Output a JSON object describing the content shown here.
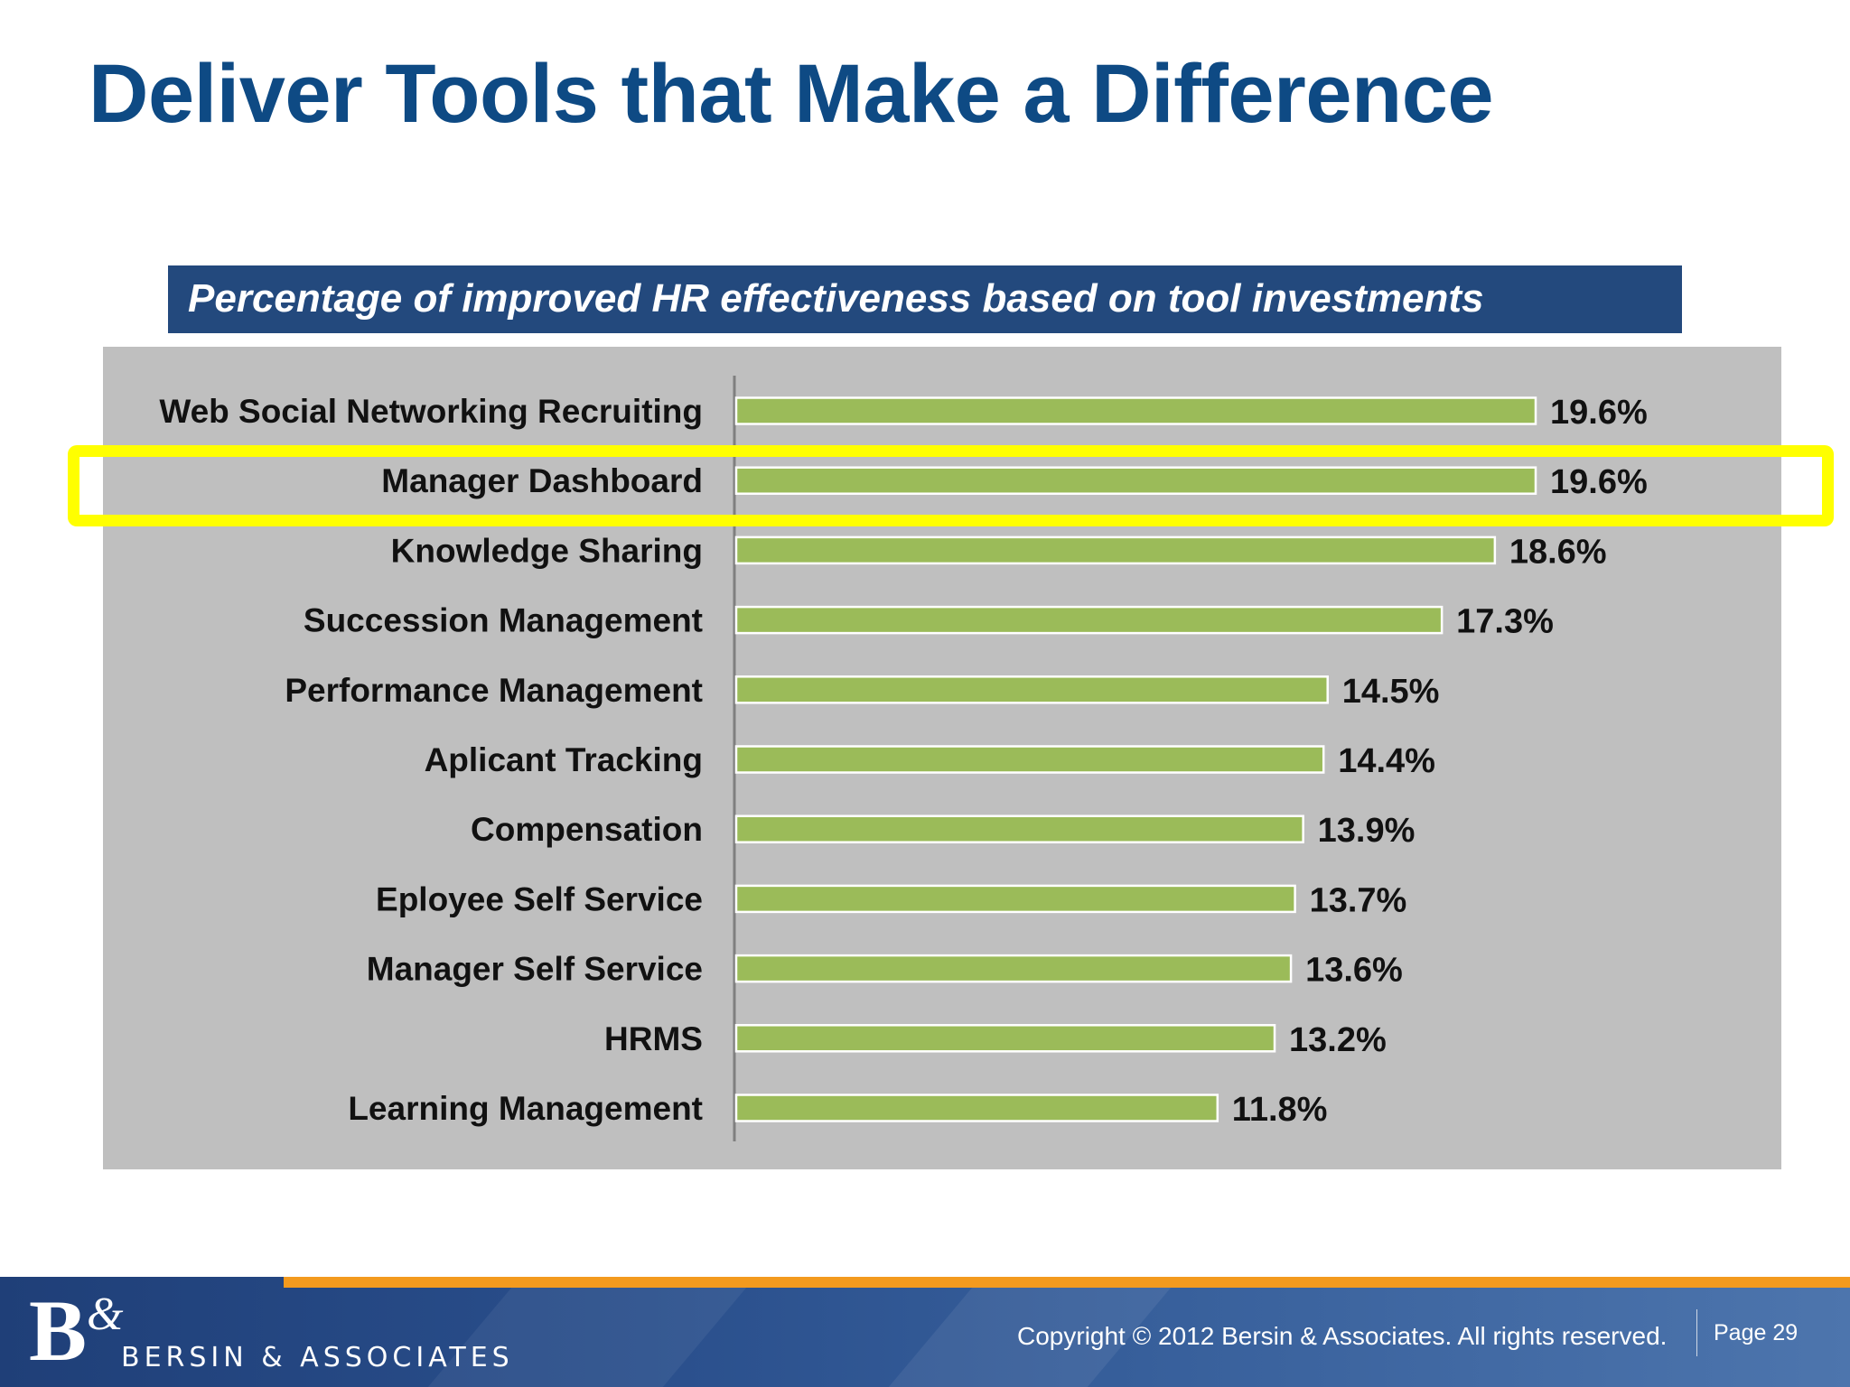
{
  "slide": {
    "title": "Deliver Tools that Make a Difference",
    "subtitle": "Percentage of improved HR effectiveness based on tool investments"
  },
  "chart_data": {
    "type": "bar",
    "orientation": "horizontal",
    "title": "Percentage of improved HR effectiveness based on tool investments",
    "categories": [
      "Web Social Networking Recruiting",
      "Manager Dashboard",
      "Knowledge Sharing",
      "Succession Management",
      "Performance Management",
      "Aplicant Tracking",
      "Compensation",
      "Eployee Self Service",
      "Manager Self Service",
      "HRMS",
      "Learning Management"
    ],
    "values": [
      19.6,
      19.6,
      18.6,
      17.3,
      14.5,
      14.4,
      13.9,
      13.7,
      13.6,
      13.2,
      11.8
    ],
    "value_labels": [
      "19.6%",
      "19.6%",
      "18.6%",
      "17.3%",
      "14.5%",
      "14.4%",
      "13.9%",
      "13.7%",
      "13.6%",
      "13.2%",
      "11.8%"
    ],
    "unit": "%",
    "grid": false,
    "highlighted_category": "Manager Dashboard",
    "colors": {
      "bar": "#9bbb59",
      "panel": "#bfbfbf",
      "highlight": "#ffff00",
      "axis": "#7f7f7f"
    }
  },
  "footer": {
    "logo_mark": "B&",
    "logo_text": "BERSIN & ASSOCIATES",
    "copyright": "Copyright © 2012 Bersin & Associates. All rights reserved.",
    "page": "Page 29",
    "colors": {
      "band": "#2a4f8c",
      "stripe": "#f39a1e"
    }
  },
  "colors": {
    "title": "#0e4a84",
    "subtitle_bar": "#23497d"
  }
}
